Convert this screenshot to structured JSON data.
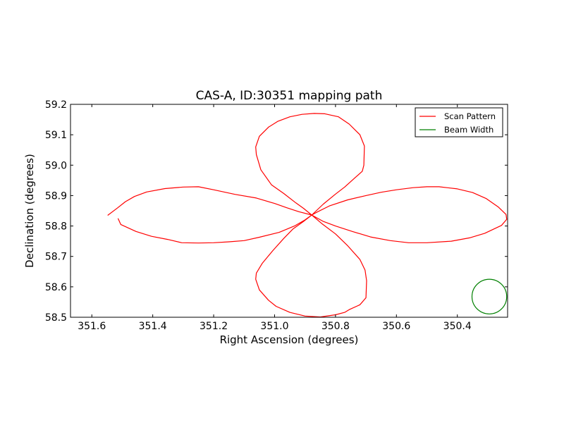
{
  "chart_data": {
    "type": "line",
    "title": "CAS-A, ID:30351 mapping path",
    "xlabel": "Right Ascension (degrees)",
    "ylabel": "Declination (degrees)",
    "xlim": [
      351.67,
      350.235
    ],
    "ylim": [
      58.5,
      59.2
    ],
    "x_reversed": true,
    "xticks": [
      351.6,
      351.4,
      351.2,
      351.0,
      350.8,
      350.6,
      350.4
    ],
    "xtick_labels": [
      "351.6",
      "351.4",
      "351.2",
      "351.0",
      "350.8",
      "350.6",
      "350.4"
    ],
    "yticks": [
      58.5,
      58.6,
      58.7,
      58.8,
      58.9,
      59.0,
      59.1,
      59.2
    ],
    "ytick_labels": [
      "58.5",
      "58.6",
      "58.7",
      "58.8",
      "58.9",
      "59.0",
      "59.1",
      "59.2"
    ],
    "grid": false,
    "legend_position": "top-right",
    "colors": {
      "scan": "#ff0000",
      "beam": "#008000"
    },
    "series": [
      {
        "name": "Scan Pattern",
        "color": "#ff0000",
        "points": [
          [
            351.514,
            58.825
          ],
          [
            351.505,
            58.805
          ],
          [
            351.455,
            58.782
          ],
          [
            351.404,
            58.766
          ],
          [
            351.351,
            58.756
          ],
          [
            351.305,
            58.745
          ],
          [
            351.25,
            58.744
          ],
          [
            351.2,
            58.745
          ],
          [
            351.15,
            58.748
          ],
          [
            351.1,
            58.752
          ],
          [
            351.05,
            58.763
          ],
          [
            350.985,
            58.779
          ],
          [
            350.935,
            58.8
          ],
          [
            350.9,
            58.82
          ],
          [
            350.878,
            58.836
          ],
          [
            350.86,
            58.846
          ],
          [
            350.82,
            58.866
          ],
          [
            350.76,
            58.886
          ],
          [
            350.7,
            58.9
          ],
          [
            350.65,
            58.911
          ],
          [
            350.6,
            58.919
          ],
          [
            350.545,
            58.926
          ],
          [
            350.5,
            58.929
          ],
          [
            350.46,
            58.929
          ],
          [
            350.4,
            58.922
          ],
          [
            350.35,
            58.91
          ],
          [
            350.305,
            58.89
          ],
          [
            350.265,
            58.862
          ],
          [
            350.24,
            58.838
          ],
          [
            350.238,
            58.822
          ],
          [
            350.255,
            58.802
          ],
          [
            350.31,
            58.776
          ],
          [
            350.36,
            58.761
          ],
          [
            350.42,
            58.75
          ],
          [
            350.5,
            58.745
          ],
          [
            350.56,
            58.745
          ],
          [
            350.62,
            58.752
          ],
          [
            350.685,
            58.764
          ],
          [
            350.745,
            58.782
          ],
          [
            350.8,
            58.8
          ],
          [
            350.84,
            58.815
          ],
          [
            350.878,
            58.836
          ],
          [
            350.905,
            58.858
          ],
          [
            350.93,
            58.876
          ],
          [
            350.97,
            58.907
          ],
          [
            351.01,
            58.935
          ],
          [
            351.045,
            58.985
          ],
          [
            351.06,
            59.035
          ],
          [
            351.062,
            59.06
          ],
          [
            351.05,
            59.095
          ],
          [
            351.02,
            59.125
          ],
          [
            350.99,
            59.144
          ],
          [
            350.95,
            59.159
          ],
          [
            350.91,
            59.167
          ],
          [
            350.87,
            59.17
          ],
          [
            350.835,
            59.169
          ],
          [
            350.79,
            59.159
          ],
          [
            350.755,
            59.135
          ],
          [
            350.72,
            59.1
          ],
          [
            350.705,
            59.063
          ],
          [
            350.707,
            59.0
          ],
          [
            350.712,
            58.98
          ],
          [
            350.74,
            58.955
          ],
          [
            350.77,
            58.928
          ],
          [
            350.8,
            58.905
          ],
          [
            350.84,
            58.872
          ],
          [
            350.878,
            58.836
          ],
          [
            350.905,
            58.815
          ],
          [
            350.94,
            58.79
          ],
          [
            350.97,
            58.759
          ],
          [
            351.005,
            58.72
          ],
          [
            351.04,
            58.678
          ],
          [
            351.06,
            58.645
          ],
          [
            351.062,
            58.625
          ],
          [
            351.05,
            58.59
          ],
          [
            351.02,
            58.556
          ],
          [
            350.995,
            58.536
          ],
          [
            350.95,
            58.516
          ],
          [
            350.9,
            58.504
          ],
          [
            350.85,
            58.501
          ],
          [
            350.8,
            58.508
          ],
          [
            350.77,
            58.516
          ],
          [
            350.755,
            58.525
          ],
          [
            350.72,
            58.541
          ],
          [
            350.7,
            58.564
          ],
          [
            350.698,
            58.62
          ],
          [
            350.703,
            58.655
          ],
          [
            350.72,
            58.69
          ],
          [
            350.76,
            58.735
          ],
          [
            350.8,
            58.774
          ],
          [
            350.845,
            58.808
          ],
          [
            350.878,
            58.836
          ],
          [
            350.92,
            58.847
          ],
          [
            350.96,
            58.86
          ],
          [
            351.0,
            58.874
          ],
          [
            351.06,
            58.892
          ],
          [
            351.13,
            58.904
          ],
          [
            351.2,
            58.919
          ],
          [
            351.25,
            58.929
          ],
          [
            351.3,
            58.928
          ],
          [
            351.36,
            58.923
          ],
          [
            351.42,
            58.912
          ],
          [
            351.46,
            58.897
          ],
          [
            351.49,
            58.88
          ],
          [
            351.515,
            58.86
          ],
          [
            351.548,
            58.835
          ]
        ]
      },
      {
        "name": "Beam Width",
        "color": "#008000",
        "shape": "circle",
        "center": [
          350.295,
          58.568
        ],
        "radius_deg_dec": 0.057
      }
    ]
  }
}
